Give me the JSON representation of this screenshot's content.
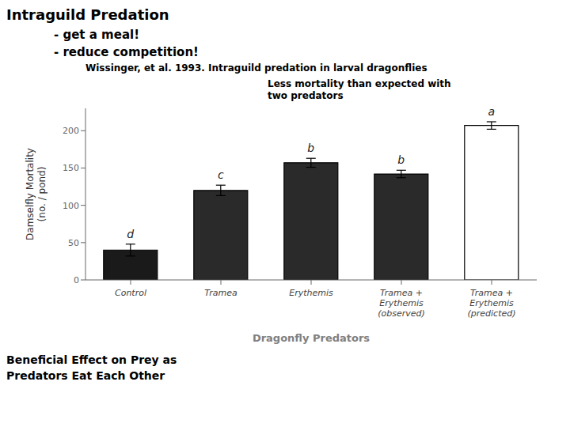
{
  "chart_data": {
    "type": "bar",
    "title": "Intraguild Predation",
    "subtitle": [
      "- get a meal!",
      "- reduce competition!"
    ],
    "annotations": [
      "Wissinger, et al. 1993.  Intraguild predation in larval dragonflies",
      "Less mortality than expected with\ntwo predators",
      "Beneficial Effect on Prey as\nPredators Eat Each Other"
    ],
    "xlabel": "Dragonfly Predators",
    "ylabel": "Damselfly Mortality\n(no. / pond)",
    "categories": [
      "Control",
      "Tramea",
      "Erythemis",
      "Tramea +\nErythemis\n(observed)",
      "Tramea +\nErythemis\n(predicted)"
    ],
    "values": [
      40,
      120,
      157,
      142,
      207
    ],
    "errors": [
      8,
      7,
      6,
      5,
      5
    ],
    "letter_labels": [
      "d",
      "c",
      "b",
      "b",
      "a"
    ],
    "colors": [
      "#1a1a1a",
      "#2a2a2a",
      "#2a2a2a",
      "#2a2a2a",
      "#ffffff"
    ],
    "ylim": [
      0,
      230
    ],
    "yticks": [
      0,
      50,
      100,
      150,
      200
    ],
    "grid": false
  }
}
